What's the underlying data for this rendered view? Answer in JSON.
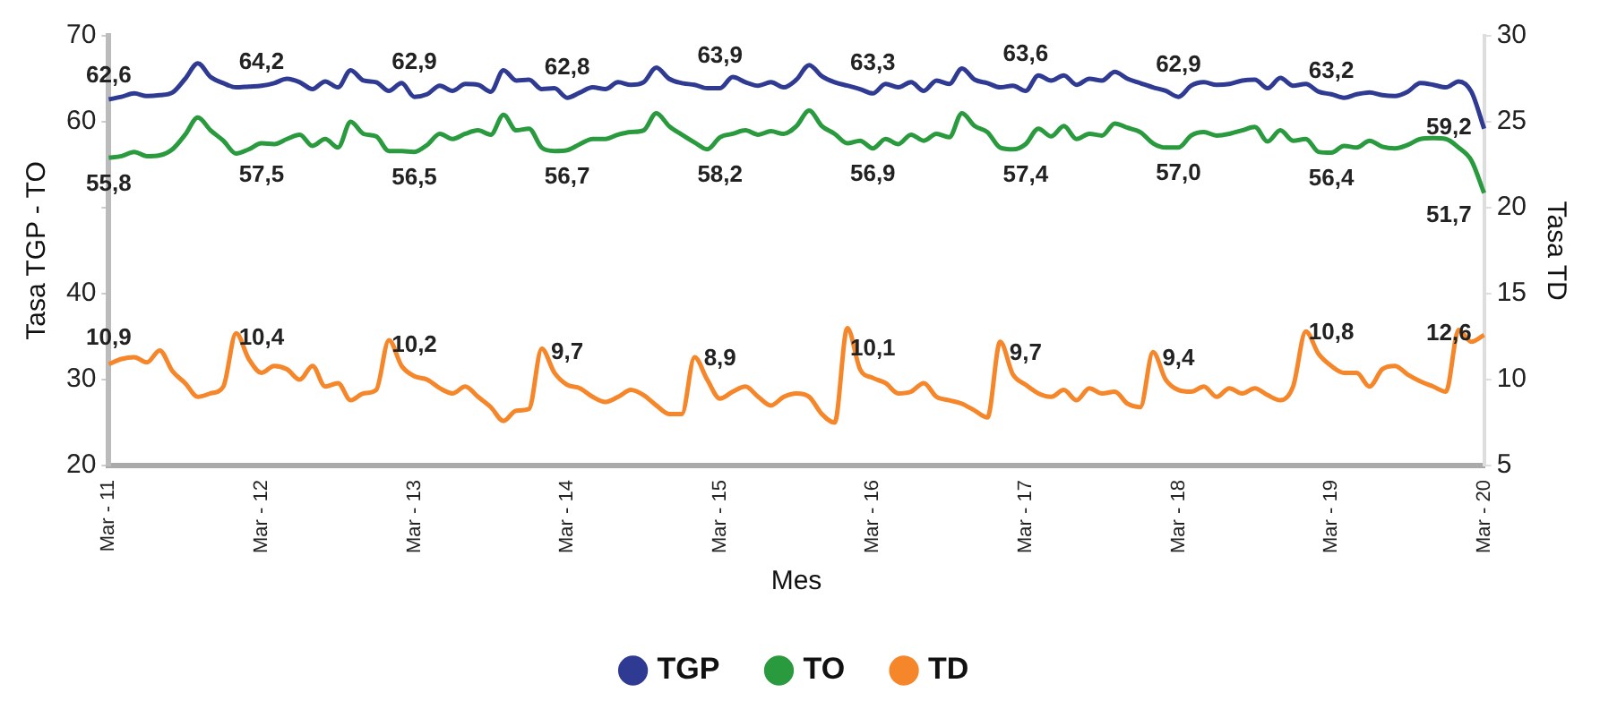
{
  "chart_data": {
    "type": "line",
    "xlabel": "Mes",
    "ylabel": "Tasa TGP - TO",
    "y2label": "Tasa TD",
    "categories": [
      "Mar - 11",
      null,
      null,
      null,
      null,
      null,
      null,
      null,
      null,
      null,
      null,
      null,
      "Mar - 12",
      null,
      null,
      null,
      null,
      null,
      null,
      null,
      null,
      null,
      null,
      null,
      "Mar - 13",
      null,
      null,
      null,
      null,
      null,
      null,
      null,
      null,
      null,
      null,
      null,
      "Mar - 14",
      null,
      null,
      null,
      null,
      null,
      null,
      null,
      null,
      null,
      null,
      null,
      "Mar - 15",
      null,
      null,
      null,
      null,
      null,
      null,
      null,
      null,
      null,
      null,
      null,
      "Mar - 16",
      null,
      null,
      null,
      null,
      null,
      null,
      null,
      null,
      null,
      null,
      null,
      "Mar - 17",
      null,
      null,
      null,
      null,
      null,
      null,
      null,
      null,
      null,
      null,
      null,
      "Mar - 18",
      null,
      null,
      null,
      null,
      null,
      null,
      null,
      null,
      null,
      null,
      null,
      "Mar - 19",
      null,
      null,
      null,
      null,
      null,
      null,
      null,
      null,
      null,
      null,
      null,
      "Mar - 20"
    ],
    "series": [
      {
        "name": "TGP",
        "color": "#2f3b93",
        "values": [
          62.6,
          62.9,
          63.3,
          63.0,
          63.1,
          63.4,
          65.0,
          66.8,
          65.2,
          64.5,
          64.0,
          64.1,
          64.2,
          64.5,
          65.0,
          64.6,
          63.8,
          64.7,
          64.0,
          66.0,
          64.8,
          64.6,
          63.6,
          64.5,
          62.9,
          63.2,
          64.2,
          63.6,
          64.4,
          64.3,
          63.5,
          66.0,
          64.8,
          64.9,
          63.8,
          63.9,
          62.8,
          63.4,
          64.0,
          63.8,
          64.6,
          64.3,
          64.6,
          66.3,
          65.0,
          64.5,
          64.3,
          63.9,
          63.9,
          65.2,
          64.6,
          64.2,
          64.6,
          64.0,
          64.9,
          66.6,
          65.3,
          64.6,
          64.2,
          63.8,
          63.3,
          64.4,
          64.0,
          64.6,
          63.6,
          64.8,
          64.4,
          66.2,
          64.9,
          64.5,
          64.0,
          64.2,
          63.6,
          65.4,
          64.8,
          65.4,
          64.3,
          65.0,
          64.8,
          65.8,
          65.0,
          64.5,
          64.0,
          63.6,
          62.9,
          64.2,
          64.6,
          64.3,
          64.4,
          64.8,
          64.9,
          63.9,
          65.1,
          64.2,
          64.4,
          63.5,
          63.2,
          62.8,
          63.2,
          63.4,
          63.1,
          63.0,
          63.5,
          64.5,
          64.3,
          64.0,
          64.7,
          63.5,
          59.2
        ],
        "value_labels": [
          "62,6",
          null,
          null,
          null,
          null,
          null,
          null,
          null,
          null,
          null,
          null,
          null,
          "64,2",
          null,
          null,
          null,
          null,
          null,
          null,
          null,
          null,
          null,
          null,
          null,
          "62,9",
          null,
          null,
          null,
          null,
          null,
          null,
          null,
          null,
          null,
          null,
          null,
          "62,8",
          null,
          null,
          null,
          null,
          null,
          null,
          null,
          null,
          null,
          null,
          null,
          "63,9",
          null,
          null,
          null,
          null,
          null,
          null,
          null,
          null,
          null,
          null,
          null,
          "63,3",
          null,
          null,
          null,
          null,
          null,
          null,
          null,
          null,
          null,
          null,
          null,
          "63,6",
          null,
          null,
          null,
          null,
          null,
          null,
          null,
          null,
          null,
          null,
          null,
          "62,9",
          null,
          null,
          null,
          null,
          null,
          null,
          null,
          null,
          null,
          null,
          null,
          "63,2",
          null,
          null,
          null,
          null,
          null,
          null,
          null,
          null,
          null,
          null,
          null,
          "59,2"
        ]
      },
      {
        "name": "TO",
        "color": "#2a9a3e",
        "values": [
          55.8,
          56.0,
          56.5,
          56.0,
          56.1,
          56.8,
          58.5,
          60.5,
          59.0,
          57.8,
          56.3,
          56.8,
          57.5,
          57.4,
          58.0,
          58.5,
          57.2,
          58.0,
          57.0,
          60.0,
          58.6,
          58.3,
          56.6,
          56.6,
          56.5,
          57.3,
          58.6,
          58.0,
          58.6,
          59.0,
          58.5,
          60.8,
          59.0,
          59.2,
          57.0,
          56.6,
          56.7,
          57.4,
          58.0,
          58.0,
          58.5,
          58.8,
          59.0,
          61.0,
          59.5,
          58.5,
          57.6,
          56.8,
          58.2,
          58.6,
          59.0,
          58.5,
          58.9,
          58.6,
          59.5,
          61.3,
          59.5,
          58.6,
          57.5,
          57.8,
          56.9,
          58.0,
          57.4,
          58.5,
          57.8,
          58.6,
          58.2,
          61.0,
          59.5,
          58.8,
          57.0,
          56.8,
          57.4,
          59.2,
          58.3,
          59.5,
          58.0,
          58.6,
          58.4,
          59.8,
          59.3,
          58.8,
          57.5,
          57.0,
          57.0,
          58.4,
          58.8,
          58.4,
          58.6,
          59.0,
          59.4,
          57.7,
          59.0,
          57.8,
          58.0,
          56.5,
          56.4,
          57.2,
          57.0,
          57.8,
          57.1,
          56.9,
          57.3,
          58.0,
          58.1,
          58.0,
          57.0,
          55.5,
          51.7
        ],
        "value_labels": [
          "55,8",
          null,
          null,
          null,
          null,
          null,
          null,
          null,
          null,
          null,
          null,
          null,
          "57,5",
          null,
          null,
          null,
          null,
          null,
          null,
          null,
          null,
          null,
          null,
          null,
          "56,5",
          null,
          null,
          null,
          null,
          null,
          null,
          null,
          null,
          null,
          null,
          null,
          "56,7",
          null,
          null,
          null,
          null,
          null,
          null,
          null,
          null,
          null,
          null,
          null,
          "58,2",
          null,
          null,
          null,
          null,
          null,
          null,
          null,
          null,
          null,
          null,
          null,
          "56,9",
          null,
          null,
          null,
          null,
          null,
          null,
          null,
          null,
          null,
          null,
          null,
          "57,4",
          null,
          null,
          null,
          null,
          null,
          null,
          null,
          null,
          null,
          null,
          null,
          "57,0",
          null,
          null,
          null,
          null,
          null,
          null,
          null,
          null,
          null,
          null,
          null,
          "56,4",
          null,
          null,
          null,
          null,
          null,
          null,
          null,
          null,
          null,
          null,
          null,
          "51,7"
        ]
      },
      {
        "name": "TD",
        "color": "#f5862a",
        "axis": "y2",
        "values": [
          10.9,
          11.2,
          11.3,
          11.0,
          11.7,
          10.5,
          9.8,
          9.0,
          9.2,
          9.6,
          12.7,
          11.2,
          10.4,
          10.8,
          10.6,
          10.0,
          10.8,
          9.6,
          9.8,
          8.8,
          9.2,
          9.4,
          12.3,
          10.8,
          10.2,
          10.0,
          9.5,
          9.2,
          9.6,
          9.0,
          8.4,
          7.6,
          8.2,
          8.3,
          11.8,
          10.4,
          9.7,
          9.5,
          9.0,
          8.7,
          9.0,
          9.4,
          9.1,
          8.5,
          8.0,
          8.0,
          11.3,
          10.0,
          8.9,
          9.3,
          9.6,
          9.0,
          8.5,
          9.0,
          9.2,
          9.0,
          8.0,
          7.5,
          13.0,
          10.6,
          10.1,
          9.8,
          9.2,
          9.3,
          9.8,
          9.0,
          8.8,
          8.6,
          8.2,
          7.8,
          12.2,
          10.3,
          9.7,
          9.2,
          9.0,
          9.4,
          8.8,
          9.5,
          9.2,
          9.3,
          8.6,
          8.4,
          11.6,
          10.0,
          9.4,
          9.3,
          9.6,
          9.0,
          9.5,
          9.2,
          9.5,
          9.1,
          8.8,
          9.6,
          12.8,
          11.5,
          10.8,
          10.4,
          10.4,
          9.6,
          10.6,
          10.8,
          10.3,
          9.9,
          9.6,
          9.3,
          12.9,
          12.2,
          12.6
        ],
        "value_labels": [
          "10,9",
          null,
          null,
          null,
          null,
          null,
          null,
          null,
          null,
          null,
          null,
          null,
          "10,4",
          null,
          null,
          null,
          null,
          null,
          null,
          null,
          null,
          null,
          null,
          null,
          "10,2",
          null,
          null,
          null,
          null,
          null,
          null,
          null,
          null,
          null,
          null,
          null,
          "9,7",
          null,
          null,
          null,
          null,
          null,
          null,
          null,
          null,
          null,
          null,
          null,
          "8,9",
          null,
          null,
          null,
          null,
          null,
          null,
          null,
          null,
          null,
          null,
          null,
          "10,1",
          null,
          null,
          null,
          null,
          null,
          null,
          null,
          null,
          null,
          null,
          null,
          "9,7",
          null,
          null,
          null,
          null,
          null,
          null,
          null,
          null,
          null,
          null,
          null,
          "9,4",
          null,
          null,
          null,
          null,
          null,
          null,
          null,
          null,
          null,
          null,
          null,
          "10,8",
          null,
          null,
          null,
          null,
          null,
          null,
          null,
          null,
          null,
          null,
          null,
          "12,6"
        ]
      }
    ],
    "ylim": [
      20,
      70
    ],
    "yticks": [
      20,
      30,
      40,
      {
        "value": 50,
        "label": null
      },
      60,
      70
    ],
    "y2lim": [
      5,
      30
    ],
    "y2ticks": [
      5,
      10,
      15,
      20,
      25,
      30
    ],
    "grid": false,
    "legend": "bottom"
  }
}
